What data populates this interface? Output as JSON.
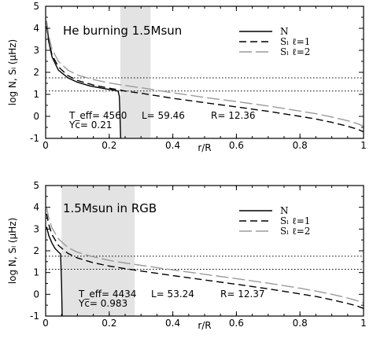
{
  "chart_data": [
    {
      "type": "line",
      "title": "He burning 1.5Msun",
      "xlabel": "r/R",
      "ylabel": "log N, Sₗ (μHz)",
      "xlim": [
        0,
        1
      ],
      "ylim": [
        -1,
        5
      ],
      "x_ticks": [
        "0",
        "0.2",
        "0.4",
        "0.6",
        "0.8",
        "1"
      ],
      "y_ticks": [
        "-1",
        "0",
        "1",
        "2",
        "3",
        "4",
        "5"
      ],
      "legend": {
        "position": "top-right",
        "entries": [
          "N",
          "Sₗ  ℓ=1",
          "Sₗ  ℓ=2"
        ]
      },
      "annotations": {
        "teff": "T_eff= 4560",
        "lum": "L= 59.46",
        "rad": "R= 12.36",
        "yc": "Yc= 0.21"
      },
      "hlines": [
        1.75,
        1.15
      ],
      "shaded_region": [
        0.235,
        0.33
      ],
      "series": [
        {
          "name": "N",
          "style": "solid",
          "x": [
            0.003,
            0.01,
            0.02,
            0.04,
            0.07,
            0.1,
            0.14,
            0.18,
            0.21,
            0.228,
            0.232,
            0.234,
            0.236
          ],
          "y": [
            4.3,
            3.4,
            2.7,
            2.1,
            1.75,
            1.55,
            1.38,
            1.27,
            1.2,
            1.15,
            0.9,
            0.0,
            -1.0
          ]
        },
        {
          "name": "Sₗ ℓ=1",
          "style": "dashed",
          "x": [
            0.003,
            0.01,
            0.02,
            0.04,
            0.07,
            0.1,
            0.15,
            0.2,
            0.25,
            0.3,
            0.4,
            0.5,
            0.6,
            0.7,
            0.8,
            0.85,
            0.9,
            0.95,
            0.98,
            1.0
          ],
          "y": [
            4.1,
            3.4,
            2.8,
            2.25,
            1.85,
            1.63,
            1.42,
            1.28,
            1.15,
            1.05,
            0.82,
            0.62,
            0.43,
            0.23,
            0.0,
            -0.12,
            -0.27,
            -0.45,
            -0.58,
            -0.7
          ]
        },
        {
          "name": "Sₗ ℓ=2",
          "style": "long-dash",
          "x": [
            0.003,
            0.01,
            0.02,
            0.04,
            0.07,
            0.1,
            0.15,
            0.2,
            0.25,
            0.3,
            0.4,
            0.5,
            0.6,
            0.7,
            0.8,
            0.85,
            0.9,
            0.95,
            0.98,
            1.0
          ],
          "y": [
            4.35,
            3.65,
            3.05,
            2.5,
            2.1,
            1.88,
            1.67,
            1.52,
            1.4,
            1.3,
            1.07,
            0.86,
            0.67,
            0.47,
            0.24,
            0.12,
            -0.03,
            -0.2,
            -0.33,
            -0.45
          ]
        }
      ]
    },
    {
      "type": "line",
      "title": "1.5Msun in   RGB",
      "xlabel": "r/R",
      "ylabel": "log N, Sₗ (μHz)",
      "xlim": [
        0,
        1
      ],
      "ylim": [
        -1,
        5
      ],
      "x_ticks": [
        "0",
        "0.2",
        "0.4",
        "0.6",
        "0.8",
        "1"
      ],
      "y_ticks": [
        "-1",
        "0",
        "1",
        "2",
        "3",
        "4",
        "5"
      ],
      "legend": {
        "position": "top-right",
        "entries": [
          "N",
          "Sₗ  ℓ=1",
          "Sₗ  ℓ=2"
        ]
      },
      "annotations": {
        "teff": "T_eff= 4434",
        "lum": "L= 53.24",
        "rad": "R= 12.37",
        "yc": "Yc= 0.983"
      },
      "hlines": [
        1.75,
        1.15
      ],
      "shaded_region": [
        0.05,
        0.28
      ],
      "series": [
        {
          "name": "N",
          "style": "solid",
          "x": [
            0.003,
            0.01,
            0.02,
            0.03,
            0.04,
            0.047,
            0.05,
            0.052
          ],
          "y": [
            3.1,
            2.7,
            2.35,
            2.1,
            1.95,
            1.85,
            0.5,
            -1.0
          ]
        },
        {
          "name": "Sₗ ℓ=1",
          "style": "dashed",
          "x": [
            0.003,
            0.01,
            0.02,
            0.04,
            0.07,
            0.1,
            0.15,
            0.2,
            0.25,
            0.3,
            0.4,
            0.5,
            0.6,
            0.7,
            0.8,
            0.85,
            0.9,
            0.95,
            0.98,
            1.0
          ],
          "y": [
            3.7,
            3.2,
            2.75,
            2.25,
            1.88,
            1.67,
            1.45,
            1.3,
            1.18,
            1.07,
            0.86,
            0.66,
            0.46,
            0.25,
            0.02,
            -0.1,
            -0.25,
            -0.42,
            -0.54,
            -0.65
          ]
        },
        {
          "name": "Sₗ ℓ=2",
          "style": "long-dash",
          "x": [
            0.003,
            0.01,
            0.02,
            0.04,
            0.07,
            0.1,
            0.15,
            0.2,
            0.25,
            0.3,
            0.4,
            0.5,
            0.6,
            0.7,
            0.8,
            0.85,
            0.9,
            0.95,
            0.98,
            1.0
          ],
          "y": [
            4.0,
            3.5,
            3.05,
            2.55,
            2.15,
            1.93,
            1.72,
            1.56,
            1.44,
            1.33,
            1.12,
            0.92,
            0.72,
            0.51,
            0.28,
            0.15,
            0.0,
            -0.17,
            -0.3,
            -0.4
          ]
        }
      ]
    }
  ]
}
